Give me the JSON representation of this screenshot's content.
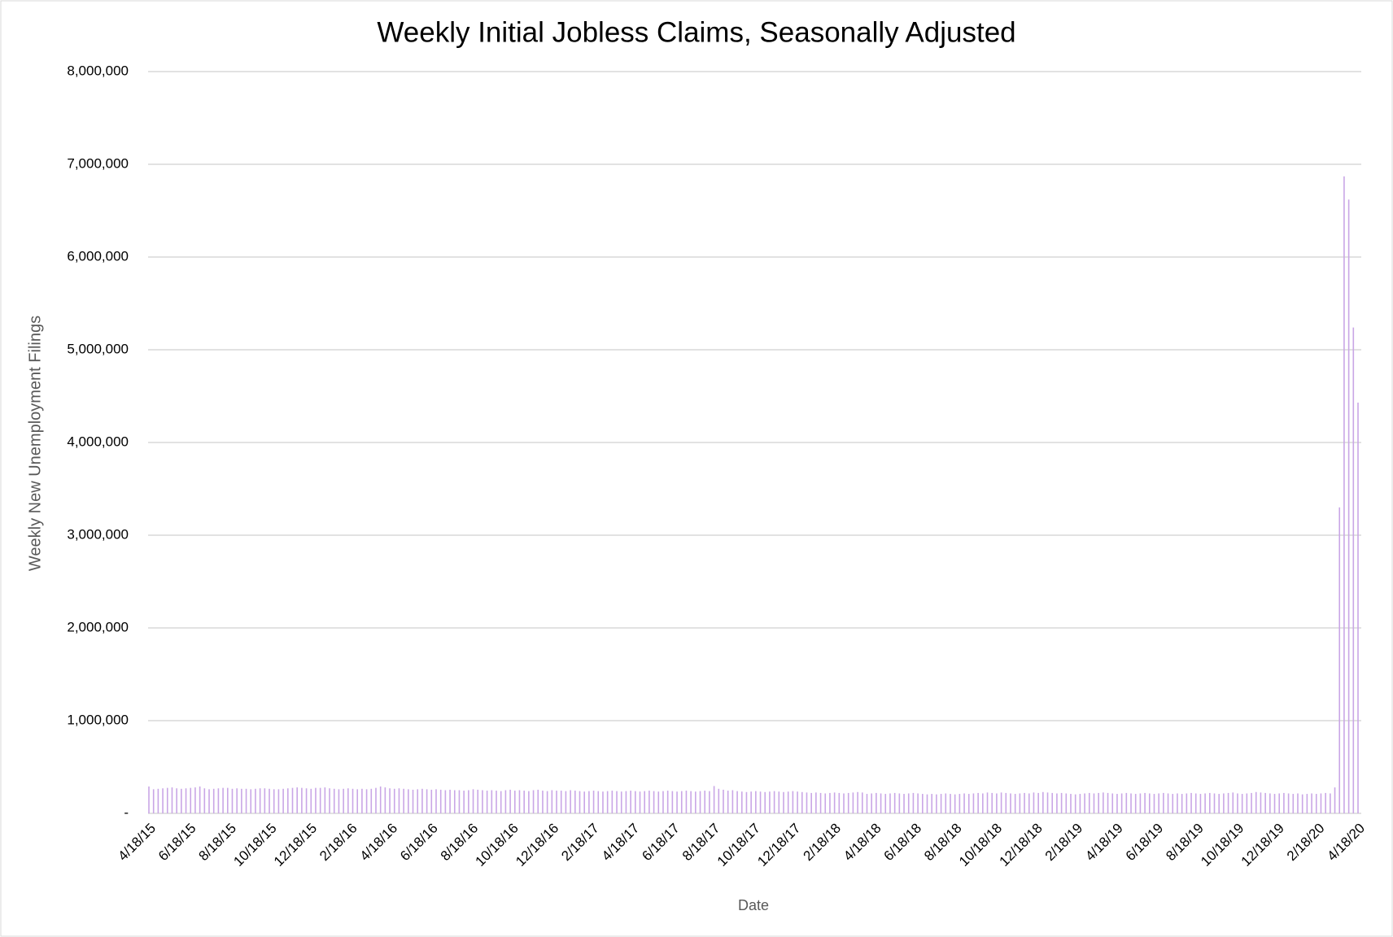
{
  "chart_data": {
    "type": "bar",
    "title": "Weekly Initial Jobless Claims, Seasonally Adjusted",
    "y_label": "Weekly New Unemployment Filings",
    "x_label": "Date",
    "color": "#c9a6e6",
    "grid": true,
    "ylim": [
      0,
      8000000
    ],
    "yticks": [
      {
        "value": 0,
        "label": "-"
      },
      {
        "value": 1000000,
        "label": "1,000,000"
      },
      {
        "value": 2000000,
        "label": "2,000,000"
      },
      {
        "value": 3000000,
        "label": "3,000,000"
      },
      {
        "value": 4000000,
        "label": "4,000,000"
      },
      {
        "value": 5000000,
        "label": "5,000,000"
      },
      {
        "value": 6000000,
        "label": "6,000,000"
      },
      {
        "value": 7000000,
        "label": "7,000,000"
      },
      {
        "value": 8000000,
        "label": "8,000,000"
      }
    ],
    "xticks": [
      "4/18/15",
      "6/18/15",
      "8/18/15",
      "10/18/15",
      "12/18/15",
      "2/18/16",
      "4/18/16",
      "6/18/16",
      "8/18/16",
      "10/18/16",
      "12/18/16",
      "2/18/17",
      "4/18/17",
      "6/18/17",
      "8/18/17",
      "10/18/17",
      "12/18/17",
      "2/18/18",
      "4/18/18",
      "6/18/18",
      "8/18/18",
      "10/18/18",
      "12/18/18",
      "2/18/19",
      "4/18/19",
      "6/18/19",
      "8/18/19",
      "10/18/19",
      "12/18/19",
      "2/18/20",
      "4/18/20"
    ],
    "values": [
      290000,
      260000,
      265000,
      270000,
      275000,
      280000,
      270000,
      265000,
      270000,
      275000,
      280000,
      290000,
      270000,
      260000,
      265000,
      270000,
      275000,
      275000,
      265000,
      270000,
      265000,
      265000,
      260000,
      265000,
      270000,
      270000,
      265000,
      260000,
      260000,
      265000,
      270000,
      275000,
      280000,
      275000,
      270000,
      265000,
      275000,
      275000,
      280000,
      270000,
      265000,
      260000,
      265000,
      270000,
      265000,
      260000,
      265000,
      260000,
      265000,
      275000,
      290000,
      280000,
      270000,
      265000,
      270000,
      265000,
      260000,
      255000,
      260000,
      265000,
      260000,
      255000,
      260000,
      255000,
      250000,
      255000,
      250000,
      250000,
      245000,
      250000,
      260000,
      255000,
      250000,
      245000,
      250000,
      245000,
      240000,
      250000,
      255000,
      245000,
      250000,
      245000,
      240000,
      250000,
      255000,
      245000,
      240000,
      250000,
      245000,
      245000,
      240000,
      250000,
      245000,
      240000,
      235000,
      240000,
      245000,
      240000,
      235000,
      240000,
      245000,
      240000,
      235000,
      240000,
      245000,
      240000,
      235000,
      240000,
      245000,
      240000,
      235000,
      240000,
      245000,
      240000,
      235000,
      240000,
      245000,
      240000,
      235000,
      240000,
      245000,
      240000,
      295000,
      265000,
      255000,
      245000,
      250000,
      240000,
      235000,
      230000,
      235000,
      240000,
      235000,
      230000,
      235000,
      240000,
      235000,
      230000,
      235000,
      240000,
      235000,
      230000,
      225000,
      220000,
      225000,
      220000,
      215000,
      220000,
      225000,
      220000,
      215000,
      220000,
      225000,
      230000,
      225000,
      210000,
      215000,
      220000,
      215000,
      210000,
      215000,
      220000,
      215000,
      210000,
      215000,
      220000,
      215000,
      210000,
      205000,
      210000,
      205000,
      210000,
      215000,
      210000,
      205000,
      210000,
      215000,
      210000,
      215000,
      220000,
      215000,
      225000,
      220000,
      215000,
      225000,
      220000,
      215000,
      210000,
      215000,
      220000,
      215000,
      225000,
      220000,
      230000,
      225000,
      220000,
      215000,
      220000,
      215000,
      210000,
      205000,
      210000,
      215000,
      220000,
      215000,
      220000,
      225000,
      220000,
      215000,
      210000,
      215000,
      220000,
      215000,
      210000,
      215000,
      220000,
      215000,
      210000,
      215000,
      220000,
      215000,
      210000,
      215000,
      210000,
      215000,
      220000,
      215000,
      210000,
      215000,
      220000,
      215000,
      210000,
      215000,
      220000,
      225000,
      215000,
      210000,
      215000,
      220000,
      230000,
      225000,
      220000,
      215000,
      210000,
      215000,
      220000,
      215000,
      210000,
      215000,
      205000,
      210000,
      215000,
      210000,
      215000,
      220000,
      215000,
      280000,
      3300000,
      6870000,
      6620000,
      5240000,
      4430000
    ]
  }
}
